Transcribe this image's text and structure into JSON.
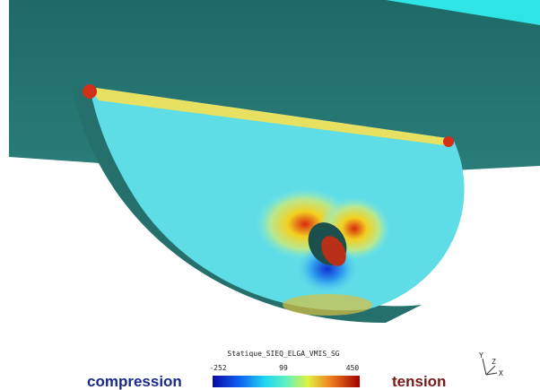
{
  "legend": {
    "title": "Statique_SIEQ_ELGA_VMIS_SG",
    "min": -252,
    "mid": 99,
    "max": 450
  },
  "left_label": "compression",
  "right_label": "tension",
  "axes": {
    "y": "Y",
    "z": "Z",
    "x": "X"
  }
}
